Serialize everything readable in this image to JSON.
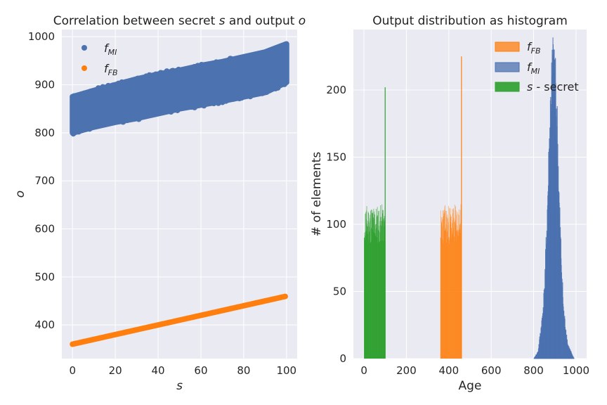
{
  "chart_data": [
    {
      "type": "scatter",
      "title_pre": "Correlation between secret ",
      "title_var1": "s",
      "title_mid": " and output ",
      "title_var2": "o",
      "xlabel": "s",
      "ylabel": "o",
      "xlim": [
        -5,
        105
      ],
      "ylim": [
        330,
        1015
      ],
      "xticks": [
        0,
        20,
        40,
        60,
        80,
        100
      ],
      "yticks": [
        400,
        500,
        600,
        700,
        800,
        900,
        1000
      ],
      "grid": true,
      "legend_position": "top-left",
      "series": [
        {
          "name_base": "f",
          "name_sub": "MI",
          "color": "#4c72b0",
          "relation": "o ≈ 840 + 0.9·s with spread ≈ ±35",
          "x": [
            0,
            10,
            20,
            30,
            40,
            50,
            60,
            70,
            80,
            90,
            100
          ],
          "y_center": [
            840,
            849,
            858,
            867,
            876,
            885,
            894,
            903,
            912,
            921,
            930
          ],
          "y_min": [
            800,
            812,
            822,
            830,
            840,
            850,
            858,
            866,
            875,
            884,
            905
          ],
          "y_max": [
            875,
            888,
            900,
            912,
            922,
            930,
            940,
            948,
            958,
            968,
            985
          ]
        },
        {
          "name_base": "f",
          "name_sub": "FB",
          "color": "#ff7f0e",
          "relation": "o = 360 + s",
          "x": [
            0,
            10,
            20,
            30,
            40,
            50,
            60,
            70,
            80,
            90,
            100
          ],
          "y": [
            360,
            370,
            380,
            390,
            400,
            410,
            420,
            430,
            440,
            450,
            460
          ]
        }
      ]
    },
    {
      "type": "bar",
      "subtype": "histogram",
      "title": "Output distribution as histogram",
      "xlabel": "Age",
      "ylabel": "# of elements",
      "xlim": [
        -50,
        1050
      ],
      "ylim": [
        0,
        245
      ],
      "xticks": [
        0,
        200,
        400,
        600,
        800,
        1000
      ],
      "yticks": [
        0,
        50,
        100,
        150,
        200
      ],
      "grid": true,
      "legend_position": "top-right",
      "series": [
        {
          "name_base": "f",
          "name_sub": "FB",
          "color": "#ff7f0e",
          "range": [
            360,
            460
          ],
          "typical_count": 100,
          "max_count": 225
        },
        {
          "name_base": "f",
          "name_sub": "MI",
          "color": "#4c72b0",
          "range": [
            800,
            990
          ],
          "profile_x": [
            800,
            820,
            840,
            850,
            860,
            870,
            880,
            890,
            900,
            910,
            920,
            930,
            940,
            960,
            980,
            990
          ],
          "profile_y": [
            0,
            5,
            30,
            50,
            90,
            140,
            190,
            215,
            210,
            170,
            110,
            70,
            35,
            10,
            3,
            0
          ],
          "max_count": 230
        },
        {
          "name_base": "s",
          "name_suffix": " - secret",
          "color": "#2ca02c",
          "range": [
            0,
            100
          ],
          "typical_count": 100,
          "max_count": 202
        }
      ]
    }
  ]
}
